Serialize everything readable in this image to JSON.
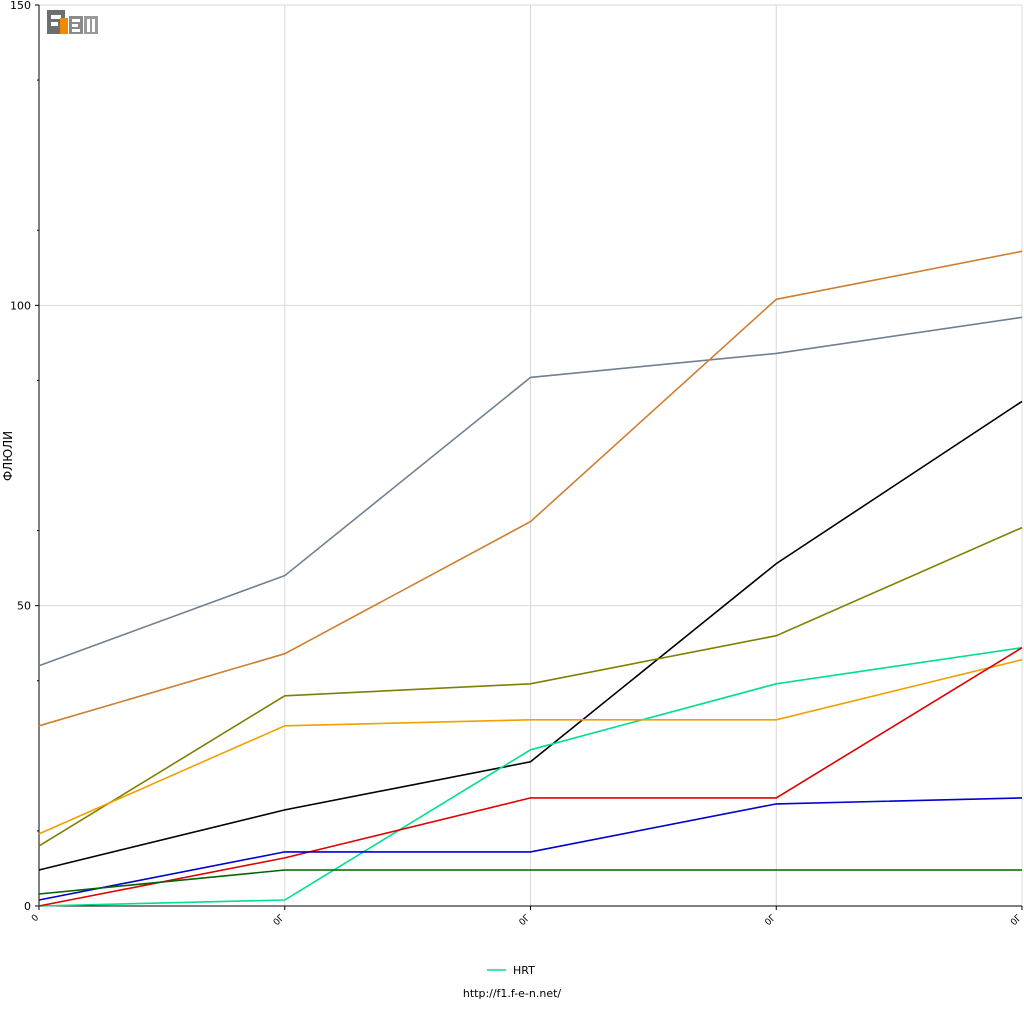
{
  "chart_data": {
    "type": "line",
    "ylabel": "ФЛЮЛИ",
    "xlabel": "",
    "ylim": [
      0,
      150
    ],
    "y_ticks": [
      0,
      50,
      100,
      150
    ],
    "x_tick_labels": [
      "0",
      "0Г",
      "0Г",
      "0Г",
      "0Г"
    ],
    "grid": true,
    "legend_position": "bottom-center",
    "series": [
      {
        "color": "#708090",
        "values": [
          40,
          55,
          88,
          92,
          98
        ]
      },
      {
        "color": "#cd7f32",
        "values": [
          30,
          42,
          64,
          101,
          109
        ]
      },
      {
        "color": "#000000",
        "values": [
          6,
          16,
          24,
          57,
          84
        ]
      },
      {
        "color": "#808000",
        "values": [
          10,
          35,
          37,
          45,
          63
        ]
      },
      {
        "name": "HRT",
        "color": "#00e08a",
        "values": [
          0,
          1,
          26,
          37,
          43
        ]
      },
      {
        "color": "#f0a000",
        "values": [
          12,
          30,
          31,
          31,
          41
        ]
      },
      {
        "color": "#e00000",
        "values": [
          0,
          8,
          18,
          18,
          43
        ]
      },
      {
        "color": "#0000cc",
        "values": [
          1,
          9,
          9,
          17,
          18
        ]
      },
      {
        "color": "#006400",
        "values": [
          2,
          6,
          6,
          6,
          6
        ]
      }
    ]
  },
  "legend": {
    "label": "HRT",
    "color": "#00e08a"
  },
  "footer": {
    "url": "http://f1.f-e-n.net/"
  },
  "logo": {
    "text": "F1EN",
    "icon": "f1en-logo-icon"
  }
}
